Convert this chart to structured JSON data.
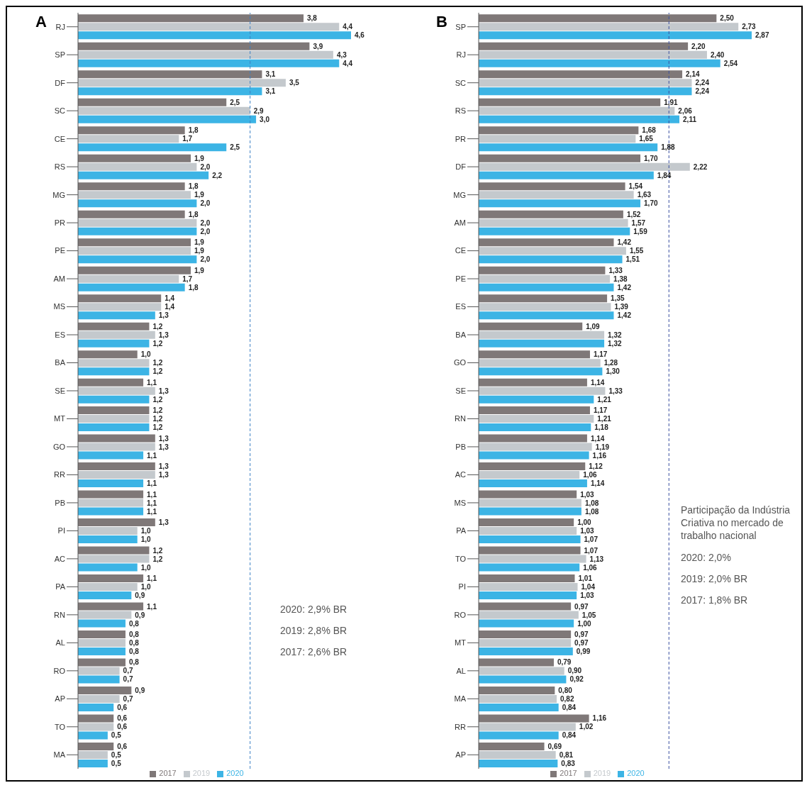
{
  "chart_data": [
    {
      "type": "bar",
      "title": "A",
      "orientation": "horizontal",
      "categories": [
        "RJ",
        "SP",
        "DF",
        "SC",
        "CE",
        "RS",
        "MG",
        "PR",
        "PE",
        "AM",
        "MS",
        "ES",
        "BA",
        "SE",
        "MT",
        "GO",
        "RR",
        "PB",
        "PI",
        "AC",
        "PA",
        "RN",
        "AL",
        "RO",
        "AP",
        "TO",
        "MA"
      ],
      "series": [
        {
          "name": "2017",
          "color": "#7f7878",
          "values": [
            3.8,
            3.9,
            3.1,
            2.5,
            1.8,
            1.9,
            1.8,
            1.8,
            1.9,
            1.9,
            1.4,
            1.2,
            1.0,
            1.1,
            1.2,
            1.3,
            1.3,
            1.1,
            1.3,
            1.2,
            1.1,
            1.1,
            0.8,
            0.8,
            0.9,
            0.6,
            0.6
          ],
          "value_labels": [
            "3,8",
            "3,9",
            "3,1",
            "2,5",
            "1,8",
            "1,9",
            "1,8",
            "1,8",
            "1,9",
            "1,9",
            "1,4",
            "1,2",
            "1,0",
            "1,1",
            "1,2",
            "1,3",
            "1,3",
            "1,1",
            "1,3",
            "1,2",
            "1,1",
            "1,1",
            "0,8",
            "0,8",
            "0,9",
            "0,6",
            "0,6"
          ]
        },
        {
          "name": "2019",
          "color": "#c4c9cd",
          "values": [
            4.4,
            4.3,
            3.5,
            2.9,
            1.7,
            2.0,
            1.9,
            2.0,
            1.9,
            1.7,
            1.4,
            1.3,
            1.2,
            1.3,
            1.2,
            1.3,
            1.3,
            1.1,
            1.0,
            1.2,
            1.0,
            0.9,
            0.8,
            0.7,
            0.7,
            0.6,
            0.5
          ],
          "value_labels": [
            "4,4",
            "4,3",
            "3,5",
            "2,9",
            "1,7",
            "2,0",
            "1,9",
            "2,0",
            "1,9",
            "1,7",
            "1,4",
            "1,3",
            "1,2",
            "1,3",
            "1,2",
            "1,3",
            "1,3",
            "1,1",
            "1,0",
            "1,2",
            "1,0",
            "0,9",
            "0,8",
            "0,7",
            "0,7",
            "0,6",
            "0,5"
          ]
        },
        {
          "name": "2020",
          "color": "#3cb4e5",
          "values": [
            4.6,
            4.4,
            3.1,
            3.0,
            2.5,
            2.2,
            2.0,
            2.0,
            2.0,
            1.8,
            1.3,
            1.2,
            1.2,
            1.2,
            1.2,
            1.1,
            1.1,
            1.1,
            1.0,
            1.0,
            0.9,
            0.8,
            0.8,
            0.7,
            0.6,
            0.5,
            0.5
          ],
          "value_labels": [
            "4,6",
            "4,4",
            "3,1",
            "3,0",
            "2,5",
            "2,2",
            "2,0",
            "2,0",
            "2,0",
            "1,8",
            "1,3",
            "1,2",
            "1,2",
            "1,2",
            "1,2",
            "1,1",
            "1,1",
            "1,1",
            "1,0",
            "1,0",
            "0,9",
            "0,8",
            "0,8",
            "0,7",
            "0,6",
            "0,5",
            "0,5"
          ]
        }
      ],
      "tick_labels": "y",
      "grid": false,
      "legend": "bottom",
      "ref_lines": [
        {
          "axis": "x",
          "value": 2.9,
          "color": "#3a7fc4",
          "line_style": "dashed"
        }
      ],
      "annotations": [
        "2020: 2,9% BR",
        "2019: 2,8% BR",
        "2017: 2,6% BR"
      ]
    },
    {
      "type": "bar",
      "title": "B",
      "orientation": "horizontal",
      "categories": [
        "SP",
        "RJ",
        "SC",
        "RS",
        "PR",
        "DF",
        "MG",
        "AM",
        "CE",
        "PE",
        "ES",
        "BA",
        "GO",
        "SE",
        "RN",
        "PB",
        "AC",
        "MS",
        "PA",
        "TO",
        "PI",
        "RO",
        "MT",
        "AL",
        "MA",
        "RR",
        "AP"
      ],
      "series": [
        {
          "name": "2017",
          "color": "#7f7878",
          "values": [
            2.5,
            2.2,
            2.14,
            1.91,
            1.68,
            1.7,
            1.54,
            1.52,
            1.42,
            1.33,
            1.35,
            1.09,
            1.17,
            1.14,
            1.17,
            1.14,
            1.12,
            1.03,
            1.0,
            1.07,
            1.01,
            0.97,
            0.97,
            0.79,
            0.8,
            1.16,
            0.69
          ],
          "value_labels": [
            "2,50",
            "2,20",
            "2,14",
            "1,91",
            "1,68",
            "1,70",
            "1,54",
            "1,52",
            "1,42",
            "1,33",
            "1,35",
            "1,09",
            "1,17",
            "1,14",
            "1,17",
            "1,14",
            "1,12",
            "1,03",
            "1,00",
            "1,07",
            "1,01",
            "0,97",
            "0,97",
            "0,79",
            "0,80",
            "1,16",
            "0,69"
          ]
        },
        {
          "name": "2019",
          "color": "#c4c9cd",
          "values": [
            2.73,
            2.4,
            2.24,
            2.06,
            1.65,
            2.22,
            1.63,
            1.57,
            1.55,
            1.38,
            1.39,
            1.32,
            1.28,
            1.33,
            1.21,
            1.19,
            1.06,
            1.08,
            1.03,
            1.13,
            1.04,
            1.05,
            0.97,
            0.9,
            0.82,
            1.02,
            0.81
          ],
          "value_labels": [
            "2,73",
            "2,40",
            "2,24",
            "2,06",
            "1,65",
            "2,22",
            "1,63",
            "1,57",
            "1,55",
            "1,38",
            "1,39",
            "1,32",
            "1,28",
            "1,33",
            "1,21",
            "1,19",
            "1,06",
            "1,08",
            "1,03",
            "1,13",
            "1,04",
            "1,05",
            "0,97",
            "0,90",
            "0,82",
            "1,02",
            "0,81"
          ]
        },
        {
          "name": "2020",
          "color": "#3cb4e5",
          "values": [
            2.87,
            2.54,
            2.24,
            2.11,
            1.88,
            1.84,
            1.7,
            1.59,
            1.51,
            1.42,
            1.42,
            1.32,
            1.3,
            1.21,
            1.18,
            1.16,
            1.14,
            1.08,
            1.07,
            1.06,
            1.03,
            1.0,
            0.99,
            0.92,
            0.84,
            0.84,
            0.83
          ],
          "value_labels": [
            "2,87",
            "2,54",
            "2,24",
            "2,11",
            "1,88",
            "1,84",
            "1,70",
            "1,59",
            "1,51",
            "1,42",
            "1,42",
            "1,32",
            "1,30",
            "1,21",
            "1,18",
            "1,16",
            "1,14",
            "1,08",
            "1,07",
            "1,06",
            "1,03",
            "1,00",
            "0,99",
            "0,92",
            "0,84",
            "0,84",
            "0,83"
          ]
        }
      ],
      "tick_labels": "y",
      "grid": false,
      "legend": "bottom",
      "ref_lines": [
        {
          "axis": "x",
          "value": 2.0,
          "color": "#3a4fa0",
          "line_style": "dashed"
        }
      ],
      "annotations": [
        "Participação da Indústria Criativa no mercado de trabalho nacional",
        "2020: 2,0%",
        "2019: 2,0% BR",
        "2017: 1,8% BR"
      ]
    }
  ]
}
